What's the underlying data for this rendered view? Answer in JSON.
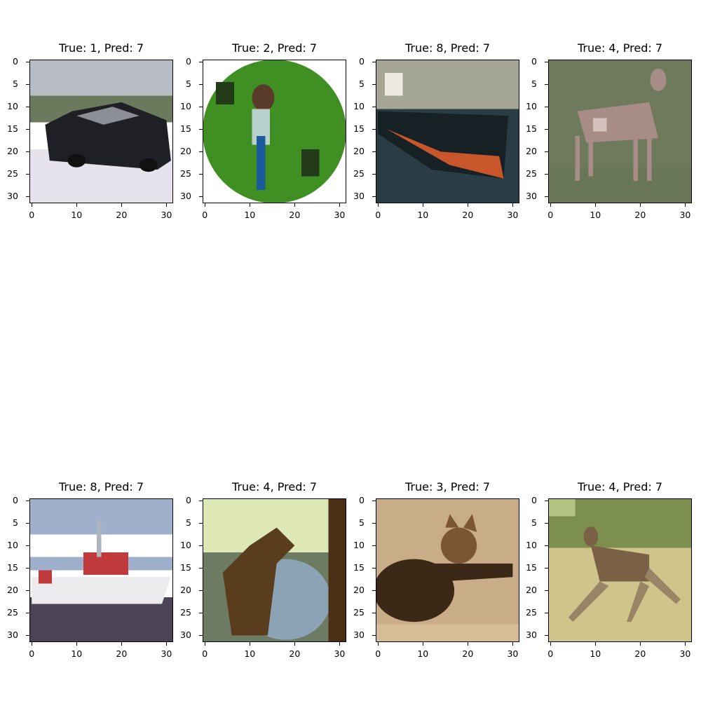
{
  "chart_data": [
    {
      "type": "image",
      "title": "True: 1, Pred: 7",
      "true_label": 1,
      "pred_label": 7,
      "subject": "car",
      "x_ticks": [
        "0",
        "10",
        "20",
        "30"
      ],
      "y_ticks": [
        "0",
        "5",
        "10",
        "15",
        "20",
        "25",
        "30"
      ],
      "xlim": [
        -0.5,
        31.5
      ],
      "ylim": [
        31.5,
        -0.5
      ],
      "palette": {
        "sky": "#b8bcc4",
        "ground": "#e6e3ec",
        "main": "#1e2026",
        "accent": "#8d8f96",
        "extra": "#6b7a5c"
      }
    },
    {
      "type": "image",
      "title": "True: 2, Pred: 7",
      "true_label": 2,
      "pred_label": 7,
      "subject": "bird",
      "x_ticks": [
        "0",
        "10",
        "20",
        "30"
      ],
      "y_ticks": [
        "0",
        "5",
        "10",
        "15",
        "20",
        "25",
        "30"
      ],
      "xlim": [
        -0.5,
        31.5
      ],
      "ylim": [
        31.5,
        -0.5
      ],
      "palette": {
        "sky": "#ffffff",
        "ground": "#ffffff",
        "main": "#3f8f22",
        "accent": "#1c5a9a",
        "extra": "#223a18"
      }
    },
    {
      "type": "image",
      "title": "True: 8, Pred: 7",
      "true_label": 8,
      "pred_label": 7,
      "subject": "ship",
      "x_ticks": [
        "0",
        "10",
        "20",
        "30"
      ],
      "y_ticks": [
        "0",
        "5",
        "10",
        "15",
        "20",
        "25",
        "30"
      ],
      "xlim": [
        -0.5,
        31.5
      ],
      "ylim": [
        31.5,
        -0.5
      ],
      "palette": {
        "sky": "#a6a697",
        "ground": "#2a3c44",
        "main": "#162126",
        "accent": "#c8562a",
        "extra": "#eeeae2"
      }
    },
    {
      "type": "image",
      "title": "True: 4, Pred: 7",
      "true_label": 4,
      "pred_label": 7,
      "subject": "deer",
      "x_ticks": [
        "0",
        "10",
        "20",
        "30"
      ],
      "y_ticks": [
        "0",
        "5",
        "10",
        "15",
        "20",
        "25",
        "30"
      ],
      "xlim": [
        -0.5,
        31.5
      ],
      "ylim": [
        31.5,
        -0.5
      ],
      "palette": {
        "sky": "#6f7a5d",
        "ground": "#6a7658",
        "main": "#a78d86",
        "accent": "#d4c2bd",
        "extra": "#5b6650"
      }
    },
    {
      "type": "image",
      "title": "True: 8, Pred: 7",
      "true_label": 8,
      "pred_label": 7,
      "subject": "boat",
      "x_ticks": [
        "0",
        "10",
        "20",
        "30"
      ],
      "y_ticks": [
        "0",
        "5",
        "10",
        "15",
        "20",
        "25",
        "30"
      ],
      "xlim": [
        -0.5,
        31.5
      ],
      "ylim": [
        31.5,
        -0.5
      ],
      "palette": {
        "sky": "#9fb0cc",
        "ground": "#4a4456",
        "main": "#ecebee",
        "accent": "#c03a3c",
        "extra": "#ffffff"
      }
    },
    {
      "type": "image",
      "title": "True: 4, Pred: 7",
      "true_label": 4,
      "pred_label": 7,
      "subject": "deer-forest",
      "x_ticks": [
        "0",
        "10",
        "20",
        "30"
      ],
      "y_ticks": [
        "0",
        "5",
        "10",
        "15",
        "20",
        "25",
        "30"
      ],
      "xlim": [
        -0.5,
        31.5
      ],
      "ylim": [
        31.5,
        -0.5
      ],
      "palette": {
        "sky": "#dde8b6",
        "ground": "#6c7b62",
        "main": "#5a3d1c",
        "accent": "#8ca3b5",
        "extra": "#4a2f14"
      }
    },
    {
      "type": "image",
      "title": "True: 3, Pred: 7",
      "true_label": 3,
      "pred_label": 7,
      "subject": "cat",
      "x_ticks": [
        "0",
        "10",
        "20",
        "30"
      ],
      "y_ticks": [
        "0",
        "5",
        "10",
        "15",
        "20",
        "25",
        "30"
      ],
      "xlim": [
        -0.5,
        31.5
      ],
      "ylim": [
        31.5,
        -0.5
      ],
      "palette": {
        "sky": "#c9ad88",
        "ground": "#bfa27c",
        "main": "#3b2816",
        "accent": "#7a5634",
        "extra": "#d7bd97"
      }
    },
    {
      "type": "image",
      "title": "True: 4, Pred: 7",
      "true_label": 4,
      "pred_label": 7,
      "subject": "deer-field",
      "x_ticks": [
        "0",
        "10",
        "20",
        "30"
      ],
      "y_ticks": [
        "0",
        "5",
        "10",
        "15",
        "20",
        "25",
        "30"
      ],
      "xlim": [
        -0.5,
        31.5
      ],
      "ylim": [
        31.5,
        -0.5
      ],
      "palette": {
        "sky": "#7d8f4e",
        "ground": "#cfc48a",
        "main": "#7a6045",
        "accent": "#9a8466",
        "extra": "#5f7436"
      }
    }
  ]
}
